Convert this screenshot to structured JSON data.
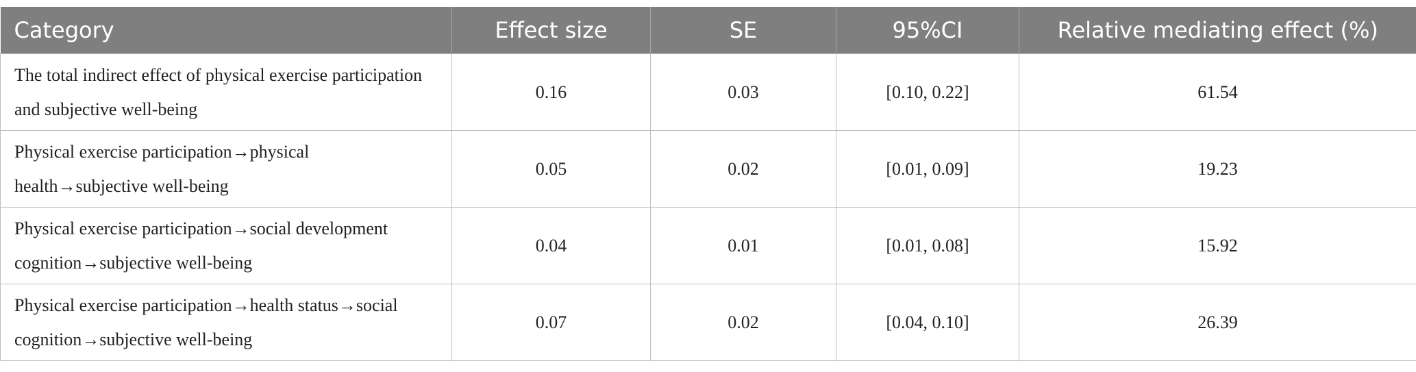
{
  "table": {
    "header": [
      "Category",
      "Effect size",
      "SE",
      "95%CI",
      "Relative mediating effect (%)"
    ],
    "rows": [
      [
        "The total indirect effect of physical exercise participation and subjective well-being",
        "0.16",
        "0.03",
        "[0.10, 0.22]",
        "61.54"
      ],
      [
        "Physical exercise participation→physical health→subjective well-being",
        "0.05",
        "0.02",
        "[0.01, 0.09]",
        "19.23"
      ],
      [
        "Physical exercise participation→social development cognition→subjective well-being",
        "0.04",
        "0.01",
        "[0.01, 0.08]",
        "15.92"
      ],
      [
        "Physical exercise participation→health status→social cognition→subjective well-being",
        "0.07",
        "0.02",
        "[0.04, 0.10]",
        "26.39"
      ]
    ]
  }
}
